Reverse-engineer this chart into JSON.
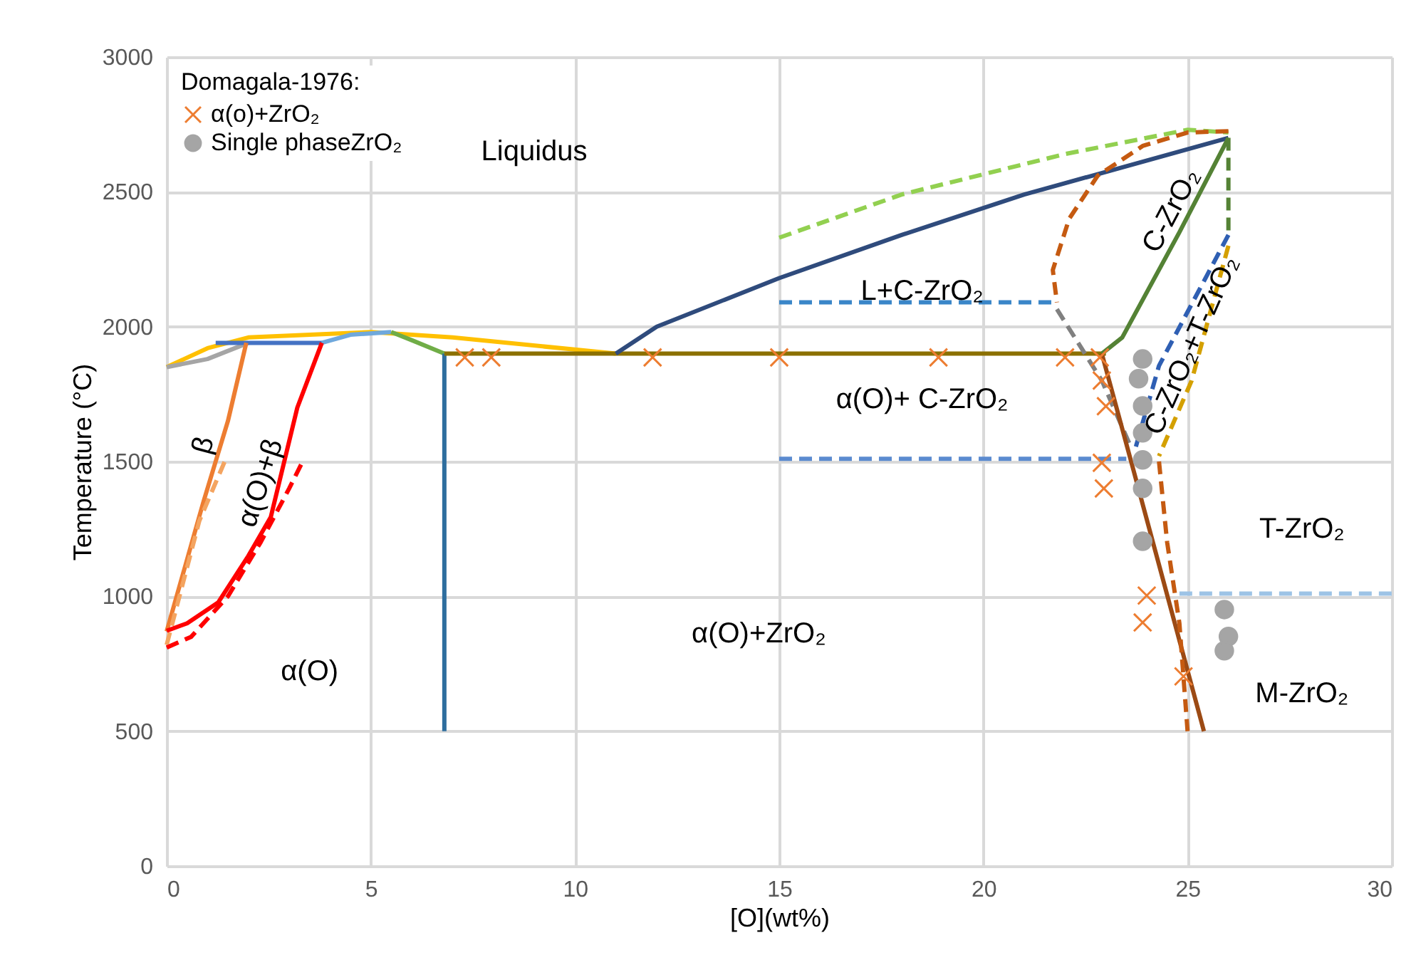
{
  "chart_data": {
    "type": "line",
    "xlabel": "[O](wt%)",
    "ylabel": "Temperature (°C)",
    "legend_title": "Domagala-1976:",
    "legend": "top left",
    "grid": true,
    "xlim": [
      0,
      30
    ],
    "xticks": [
      0,
      5,
      10,
      15,
      20,
      25,
      30
    ],
    "ylim": [
      0,
      3000
    ],
    "yticks": [
      0,
      500,
      1000,
      1500,
      2000,
      2500,
      3000
    ],
    "series": [
      {
        "color": "#9dc3e6",
        "line_style": "dashed",
        "x": [
          24.8,
          30
        ],
        "values": [
          1010,
          1010
        ]
      },
      {
        "color": "#ffc000",
        "line_style": "solid",
        "x": [
          0,
          1,
          2,
          5,
          7,
          11
        ],
        "values": [
          1850,
          1920,
          1960,
          1980,
          1960,
          1900
        ]
      },
      {
        "color": "#a5a5a5",
        "line_style": "solid",
        "x": [
          0,
          1,
          2
        ],
        "values": [
          1850,
          1880,
          1940
        ]
      },
      {
        "color": "#4472c4",
        "line_style": "solid",
        "x": [
          1.2,
          3.8
        ],
        "values": [
          1940,
          1940
        ]
      },
      {
        "color": "#6fa8dc",
        "line_style": "solid",
        "x": [
          3.8,
          4.5,
          5.5
        ],
        "values": [
          1940,
          1970,
          1980
        ]
      },
      {
        "color": "#70ad47",
        "line_style": "solid",
        "x": [
          5.5,
          6,
          6.8
        ],
        "values": [
          1980,
          1950,
          1900
        ]
      },
      {
        "color": "#2e6e9e",
        "line_style": "solid",
        "x": [
          6.8,
          6.8
        ],
        "values": [
          1900,
          500
        ]
      },
      {
        "color": "#8b7000",
        "line_style": "solid",
        "x": [
          6.8,
          23
        ],
        "values": [
          1900,
          1900
        ]
      },
      {
        "color": "#2f4b7c",
        "line_style": "solid",
        "x": [
          11,
          12,
          15,
          18,
          21,
          26
        ],
        "values": [
          1900,
          2000,
          2180,
          2340,
          2490,
          2700
        ]
      },
      {
        "color": "#92d050",
        "line_style": "dashed",
        "x": [
          15,
          18,
          22,
          25,
          26
        ],
        "values": [
          2330,
          2490,
          2640,
          2730,
          2720
        ]
      },
      {
        "color": "#c55a11",
        "line_style": "dashed",
        "x": [
          26,
          25,
          23.9,
          22.8,
          22.1,
          21.7,
          21.8
        ],
        "values": [
          2725,
          2720,
          2670,
          2560,
          2400,
          2210,
          2090
        ]
      },
      {
        "color": "#808080",
        "line_style": "dashed",
        "x": [
          21.8,
          22.9,
          23.6
        ],
        "values": [
          2065,
          1800,
          1558
        ]
      },
      {
        "color": "#3a86c8",
        "line_style": "dashed",
        "x": [
          15,
          21.8
        ],
        "values": [
          2090,
          2090
        ]
      },
      {
        "color": "#5b8bd0",
        "line_style": "dashed",
        "x": [
          15,
          23.5
        ],
        "values": [
          1510,
          1510
        ]
      },
      {
        "color": "#548235",
        "line_style": "solid",
        "x": [
          22.9,
          23.4,
          24.8,
          26
        ],
        "values": [
          1900,
          1960,
          2350,
          2700
        ]
      },
      {
        "color": "#548235",
        "line_style": "dashed",
        "x": [
          26,
          26
        ],
        "values": [
          2700,
          2340
        ]
      },
      {
        "color": "#2f5fb3",
        "line_style": "dashed",
        "x": [
          26,
          24.3,
          23.7
        ],
        "values": [
          2340,
          1855,
          1537
        ]
      },
      {
        "color": "#d4a000",
        "line_style": "dashed",
        "x": [
          26,
          25.1,
          24.3
        ],
        "values": [
          2300,
          1800,
          1520
        ]
      },
      {
        "color": "#9c4a14",
        "line_style": "solid",
        "x": [
          22.9,
          23.6,
          25.4
        ],
        "values": [
          1900,
          1510,
          500
        ]
      },
      {
        "color": "#c55a11",
        "line_style": "dashed",
        "x": [
          24.3,
          24.5,
          24.8,
          25
        ],
        "values": [
          1500,
          1200,
          900,
          500
        ]
      },
      {
        "color": "#ed7d31",
        "line_style": "solid",
        "x": [
          0,
          0.9,
          1.5,
          1.95
        ],
        "values": [
          870,
          1350,
          1650,
          1940
        ]
      },
      {
        "color": "#f4a460",
        "line_style": "dashed",
        "x": [
          0,
          0.8,
          1.45
        ],
        "values": [
          820,
          1280,
          1510
        ]
      },
      {
        "color": "#ff0000",
        "line_style": "solid",
        "x": [
          0,
          0.5,
          1.26,
          2,
          2.55,
          3.2,
          3.8
        ],
        "values": [
          872,
          900,
          977,
          1150,
          1294,
          1700,
          1940
        ]
      },
      {
        "color": "#ff0000",
        "line_style": "dashed",
        "x": [
          0,
          0.6,
          1.5,
          2.3,
          3,
          3.35
        ],
        "values": [
          810,
          850,
          1000,
          1200,
          1400,
          1506
        ]
      },
      {
        "type": "scatter",
        "name": "α(o)+ZrO₂",
        "color": "#ed7d31",
        "marker": "cross",
        "x": [
          7.3,
          7.95,
          11.9,
          15,
          18.9,
          22,
          22.85,
          22.9,
          23,
          22.9,
          22.95,
          24,
          23.9,
          24.9
        ],
        "values": [
          1886,
          1886,
          1886,
          1886,
          1886,
          1886,
          1886,
          1800,
          1705,
          1495,
          1400,
          1003,
          903,
          703
        ]
      },
      {
        "type": "scatter",
        "name": "Single phaseZrO₂",
        "color": "#a5a5a5",
        "marker": "circle",
        "x": [
          23.9,
          23.8,
          23.9,
          23.9,
          23.9,
          23.9,
          23.9,
          25.9,
          26,
          25.9
        ],
        "values": [
          1880,
          1807,
          1706,
          1606,
          1506,
          1400,
          1204,
          951,
          851,
          798
        ]
      }
    ],
    "annotations": [
      "Liquidus",
      "L+C-ZrO₂",
      "α(O)+ C-ZrO₂",
      "α(O)+ZrO₂",
      "α(O)",
      "β",
      "α(O)+β",
      "C-ZrO₂",
      "C-ZrO₂+T-ZrO₂",
      "T-ZrO₂",
      "M-ZrO₂"
    ]
  }
}
